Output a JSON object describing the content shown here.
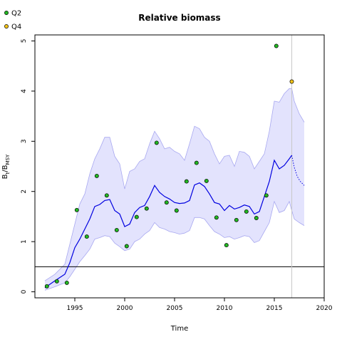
{
  "chart_data": {
    "type": "line",
    "title": "Relative biomass",
    "xlabel": "Time",
    "ylabel": "B_t / B_MSY",
    "ylabel_main": "B",
    "ylabel_sub1": "t",
    "ylabel_sep": "/B",
    "ylabel_sub2": "MSY",
    "xlim": [
      1991,
      2020
    ],
    "ylim": [
      -0.12,
      5.12
    ],
    "x_ticks": [
      1995,
      2000,
      2005,
      2010,
      2015,
      2020
    ],
    "y_ticks": [
      0,
      1,
      2,
      3,
      4,
      5
    ],
    "reference_line_y": 0.5,
    "forecast_start_x": 2016.75,
    "grid": false,
    "legend_position": "top-left",
    "colors": {
      "estimate_line": "#0000e0",
      "ci_fill": "#e3e3fd",
      "ci_edge": "#a8a8f0",
      "q2_point": "#22b822",
      "q4_point": "#f5c518",
      "reference_line": "#000000",
      "forecast_marker": "#c8c8c8"
    },
    "series": [
      {
        "name": "Q2",
        "kind": "points",
        "x": [
          1992.2,
          1993.2,
          1994.2,
          1995.2,
          1996.2,
          1997.2,
          1998.2,
          1999.2,
          2000.2,
          2001.2,
          2002.2,
          2003.2,
          2004.2,
          2005.2,
          2006.2,
          2007.2,
          2008.2,
          2009.2,
          2010.2,
          2011.2,
          2012.2,
          2013.2,
          2014.2,
          2015.2
        ],
        "y": [
          0.11,
          0.21,
          0.18,
          1.63,
          1.1,
          2.31,
          1.92,
          1.23,
          0.91,
          1.49,
          1.66,
          2.97,
          1.78,
          1.62,
          2.2,
          2.57,
          2.21,
          1.48,
          0.93,
          1.43,
          1.6,
          1.47,
          1.92,
          4.9
        ]
      },
      {
        "name": "Q4",
        "kind": "points",
        "x": [
          2016.75
        ],
        "y": [
          4.19
        ]
      }
    ],
    "estimate": {
      "x": [
        1992,
        1993,
        1994,
        1994.5,
        1995,
        1995.5,
        1996,
        1996.5,
        1997,
        1997.5,
        1998,
        1998.5,
        1999,
        1999.5,
        2000,
        2000.5,
        2001,
        2001.5,
        2002,
        2002.5,
        2003,
        2003.5,
        2004,
        2004.5,
        2005,
        2005.5,
        2006,
        2006.5,
        2007,
        2007.5,
        2008,
        2008.5,
        2009,
        2009.5,
        2010,
        2010.5,
        2011,
        2011.5,
        2012,
        2012.5,
        2013,
        2013.5,
        2014,
        2014.5,
        2015,
        2015.5,
        2016,
        2016.5,
        2016.75
      ],
      "y": [
        0.08,
        0.22,
        0.35,
        0.58,
        0.88,
        1.05,
        1.25,
        1.45,
        1.7,
        1.74,
        1.82,
        1.84,
        1.62,
        1.55,
        1.3,
        1.35,
        1.58,
        1.68,
        1.72,
        1.9,
        2.12,
        1.98,
        1.9,
        1.85,
        1.78,
        1.76,
        1.77,
        1.82,
        2.13,
        2.17,
        2.1,
        1.95,
        1.78,
        1.75,
        1.62,
        1.72,
        1.65,
        1.68,
        1.73,
        1.7,
        1.55,
        1.6,
        1.9,
        2.2,
        2.62,
        2.45,
        2.52,
        2.65,
        2.72
      ]
    },
    "forecast": {
      "x": [
        2016.75,
        2017,
        2017.3,
        2017.6,
        2018
      ],
      "y": [
        2.72,
        2.48,
        2.3,
        2.2,
        2.12
      ]
    },
    "ci_upper": {
      "x": [
        1992,
        1993,
        1994,
        1994.5,
        1995,
        1995.5,
        1996,
        1996.5,
        1997,
        1997.5,
        1998,
        1998.5,
        1999,
        1999.5,
        2000,
        2000.5,
        2001,
        2001.5,
        2002,
        2002.5,
        2003,
        2003.5,
        2004,
        2004.5,
        2005,
        2005.5,
        2006,
        2006.5,
        2007,
        2007.5,
        2008,
        2008.5,
        2009,
        2009.5,
        2010,
        2010.5,
        2011,
        2011.5,
        2012,
        2012.5,
        2013,
        2013.5,
        2014,
        2014.5,
        2015,
        2015.5,
        2016,
        2016.5,
        2016.75,
        2017,
        2017.5,
        2018
      ],
      "y": [
        0.22,
        0.35,
        0.55,
        0.95,
        1.35,
        1.75,
        1.95,
        2.35,
        2.65,
        2.85,
        3.08,
        3.08,
        2.7,
        2.55,
        2.05,
        2.4,
        2.45,
        2.6,
        2.65,
        2.95,
        3.2,
        3.05,
        2.85,
        2.88,
        2.8,
        2.75,
        2.62,
        2.95,
        3.3,
        3.25,
        3.08,
        3.0,
        2.75,
        2.55,
        2.7,
        2.72,
        2.5,
        2.8,
        2.78,
        2.7,
        2.45,
        2.6,
        2.75,
        3.2,
        3.8,
        3.78,
        3.95,
        4.05,
        4.05,
        3.8,
        3.55,
        3.38
      ]
    },
    "ci_lower": {
      "x": [
        1992,
        1993,
        1994,
        1994.5,
        1995,
        1995.5,
        1996,
        1996.5,
        1997,
        1997.5,
        1998,
        1998.5,
        1999,
        1999.5,
        2000,
        2000.5,
        2001,
        2001.5,
        2002,
        2002.5,
        2003,
        2003.5,
        2004,
        2004.5,
        2005,
        2005.5,
        2006,
        2006.5,
        2007,
        2007.5,
        2008,
        2008.5,
        2009,
        2009.5,
        2010,
        2010.5,
        2011,
        2011.5,
        2012,
        2012.5,
        2013,
        2013.5,
        2014,
        2014.5,
        2015,
        2015.5,
        2016,
        2016.5,
        2016.75,
        2017,
        2017.5,
        2018
      ],
      "y": [
        0.03,
        0.1,
        0.18,
        0.3,
        0.45,
        0.6,
        0.72,
        0.85,
        1.05,
        1.08,
        1.12,
        1.1,
        0.97,
        0.9,
        0.82,
        0.85,
        1.0,
        1.05,
        1.15,
        1.22,
        1.38,
        1.28,
        1.25,
        1.2,
        1.18,
        1.15,
        1.17,
        1.22,
        1.48,
        1.48,
        1.45,
        1.32,
        1.2,
        1.15,
        1.08,
        1.1,
        1.05,
        1.08,
        1.12,
        1.1,
        0.98,
        1.02,
        1.2,
        1.38,
        1.8,
        1.58,
        1.62,
        1.8,
        1.62,
        1.45,
        1.38,
        1.32
      ]
    }
  }
}
